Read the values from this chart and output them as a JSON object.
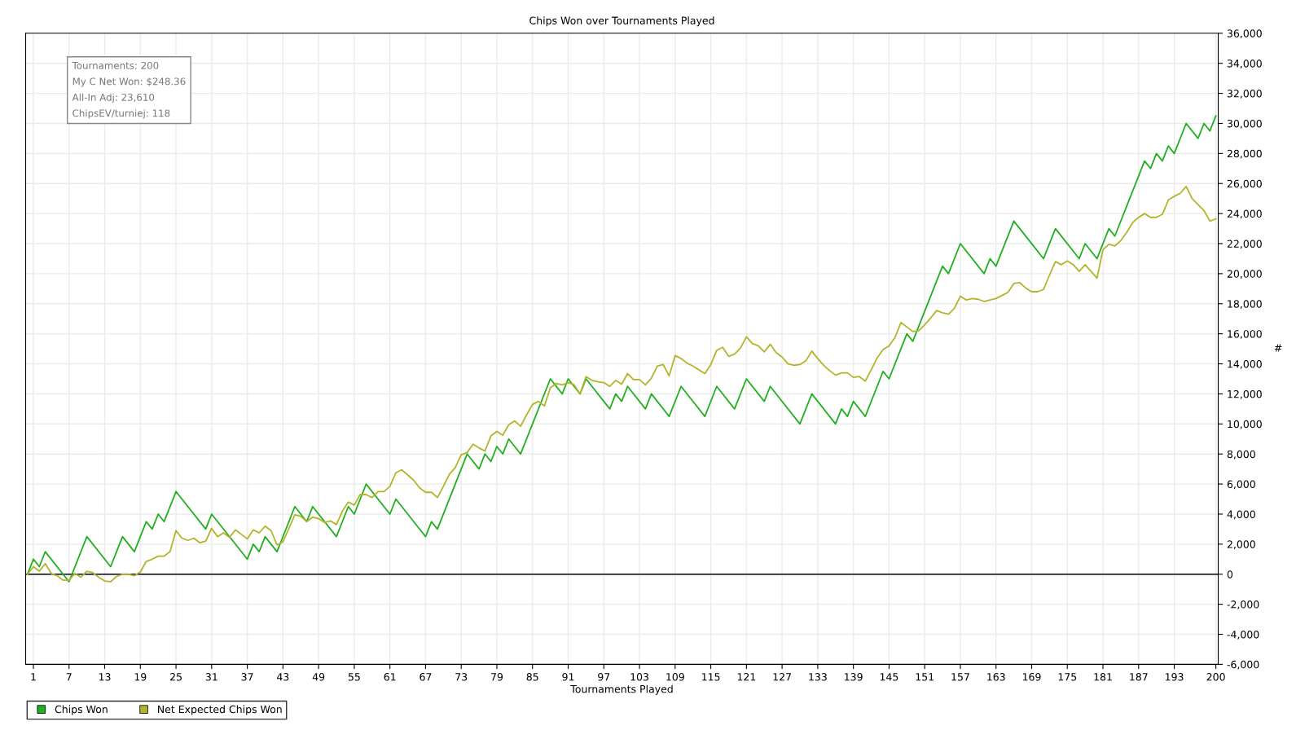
{
  "chart_data": {
    "type": "line",
    "title": "Chips Won over Tournaments Played",
    "xlabel": "Tournaments Played",
    "ylabel": "#",
    "annotations": [
      "Tournaments: 200",
      "My C Net Won: $248.36",
      "All-In Adj: 23,610",
      "ChipsEV/turniej: 118"
    ],
    "xlim": [
      -0.3,
      200.4
    ],
    "xticks": [
      1,
      7,
      13,
      19,
      25,
      31,
      37,
      43,
      49,
      55,
      61,
      67,
      73,
      79,
      85,
      91,
      97,
      103,
      109,
      115,
      121,
      127,
      133,
      139,
      145,
      151,
      157,
      163,
      169,
      175,
      181,
      187,
      193,
      200
    ],
    "ylim": [
      -6000,
      36000
    ],
    "yticks": [
      {
        "value": -6000,
        "label": "-6,000"
      },
      {
        "value": -4000,
        "label": "-4,000"
      },
      {
        "value": -2000,
        "label": "-2,000"
      },
      0,
      {
        "value": 2000,
        "label": "2,000"
      },
      {
        "value": 4000,
        "label": "4,000"
      },
      {
        "value": 6000,
        "label": "6,000"
      },
      {
        "value": 8000,
        "label": "8,000"
      },
      {
        "value": 10000,
        "label": "10,000"
      },
      {
        "value": 12000,
        "label": "12,000"
      },
      {
        "value": 14000,
        "label": "14,000"
      },
      {
        "value": 16000,
        "label": "16,000"
      },
      {
        "value": 18000,
        "label": "18,000"
      },
      {
        "value": 20000,
        "label": "20,000"
      },
      {
        "value": 22000,
        "label": "22,000"
      },
      {
        "value": 24000,
        "label": "24,000"
      },
      {
        "value": 26000,
        "label": "26,000"
      },
      {
        "value": 28000,
        "label": "28,000"
      },
      {
        "value": 30000,
        "label": "30,000"
      },
      {
        "value": 32000,
        "label": "32,000"
      },
      {
        "value": 34000,
        "label": "34,000"
      },
      {
        "value": 36000,
        "label": "36,000"
      }
    ],
    "grid": true,
    "legend": "bottom left",
    "marker": "none",
    "line_style": "solid",
    "ref_lines": [
      {
        "axis": "y",
        "value": 0,
        "label": null,
        "color": "#000000"
      }
    ],
    "series": [
      {
        "name": "Chips Won",
        "color": "#22b022",
        "x": [
          0,
          1,
          2,
          3,
          7,
          10,
          14,
          16,
          18,
          20,
          21,
          22,
          23,
          25,
          30,
          31,
          37,
          38,
          39,
          40,
          42,
          45,
          47,
          48,
          52,
          54,
          55,
          57,
          61,
          62,
          67,
          68,
          69,
          74,
          76,
          77,
          78,
          79,
          80,
          81,
          83,
          88,
          90,
          91,
          93,
          94,
          98,
          99,
          100,
          101,
          104,
          105,
          108,
          110,
          114,
          116,
          119,
          121,
          124,
          125,
          130,
          132,
          136,
          137,
          138,
          139,
          141,
          144,
          145,
          148,
          149,
          154,
          155,
          157,
          161,
          162,
          163,
          166,
          171,
          173,
          177,
          178,
          180,
          182,
          183,
          188,
          189,
          190,
          191,
          192,
          193,
          195,
          197,
          198,
          199,
          200
        ],
        "values": [
          0,
          1000,
          500,
          1500,
          -500,
          2500,
          500,
          2500,
          1500,
          3500,
          3000,
          4000,
          3500,
          5500,
          3000,
          4000,
          1000,
          2000,
          1500,
          2500,
          1500,
          4500,
          3500,
          4500,
          2500,
          4500,
          4000,
          6000,
          4000,
          5000,
          2500,
          3500,
          3000,
          8000,
          7000,
          8000,
          7500,
          8500,
          8000,
          9000,
          8000,
          13000,
          12000,
          13000,
          12000,
          13000,
          11000,
          12000,
          11500,
          12500,
          11000,
          12000,
          10500,
          12500,
          10500,
          12500,
          11000,
          13000,
          11500,
          12500,
          10000,
          12000,
          10000,
          11000,
          10500,
          11500,
          10500,
          13500,
          13000,
          16000,
          15500,
          20500,
          20000,
          22000,
          20000,
          21000,
          20500,
          23500,
          21000,
          23000,
          21000,
          22000,
          21000,
          23000,
          22500,
          27500,
          27000,
          28000,
          27500,
          28500,
          28000,
          30000,
          29000,
          30000,
          29500,
          30500
        ]
      },
      {
        "name": "Net Expected Chips Won",
        "color": "#b4b42c",
        "x": [
          0,
          1,
          2,
          3,
          4,
          5,
          6,
          7,
          8,
          9,
          10,
          11,
          12,
          13,
          14,
          15,
          16,
          17,
          18,
          19,
          20,
          21,
          22,
          23,
          24,
          25,
          26,
          27,
          28,
          29,
          30,
          31,
          32,
          33,
          34,
          35,
          36,
          37,
          38,
          39,
          40,
          41,
          42,
          43,
          44,
          45,
          46,
          47,
          48,
          49,
          50,
          51,
          52,
          53,
          54,
          55,
          56,
          57,
          58,
          59,
          60,
          61,
          62,
          63,
          64,
          65,
          66,
          67,
          68,
          69,
          70,
          71,
          72,
          73,
          74,
          75,
          76,
          77,
          78,
          79,
          80,
          81,
          82,
          83,
          84,
          85,
          86,
          87,
          88,
          89,
          90,
          91,
          92,
          93,
          94,
          95,
          96,
          97,
          98,
          99,
          100,
          101,
          102,
          103,
          104,
          105,
          106,
          107,
          108,
          109,
          110,
          111,
          112,
          113,
          114,
          115,
          116,
          117,
          118,
          119,
          120,
          121,
          122,
          123,
          124,
          125,
          126,
          127,
          128,
          129,
          130,
          131,
          132,
          133,
          134,
          135,
          136,
          137,
          138,
          139,
          140,
          141,
          142,
          143,
          144,
          145,
          146,
          147,
          148,
          149,
          150,
          151,
          152,
          153,
          154,
          155,
          156,
          157,
          158,
          159,
          160,
          161,
          162,
          163,
          164,
          165,
          166,
          167,
          168,
          169,
          170,
          171,
          172,
          173,
          174,
          175,
          176,
          177,
          178,
          179,
          180,
          181,
          182,
          183,
          184,
          185,
          186,
          187,
          188,
          189,
          190,
          191,
          192,
          193,
          194,
          195,
          196,
          197,
          198,
          199,
          200
        ],
        "values": [
          0,
          500,
          200,
          700,
          50,
          -100,
          -400,
          -400,
          50,
          -200,
          200,
          100,
          -200,
          -450,
          -500,
          -150,
          0,
          0,
          -100,
          150,
          850,
          1000,
          1200,
          1200,
          1500,
          2900,
          2400,
          2250,
          2400,
          2100,
          2200,
          3050,
          2500,
          2750,
          2450,
          2950,
          2650,
          2350,
          2950,
          2750,
          3200,
          2900,
          1950,
          2150,
          3050,
          3950,
          3850,
          3500,
          3800,
          3700,
          3450,
          3550,
          3300,
          4200,
          4800,
          4600,
          5300,
          5300,
          5100,
          5500,
          5500,
          5850,
          6750,
          6950,
          6600,
          6250,
          5750,
          5450,
          5450,
          5100,
          5850,
          6650,
          7100,
          7950,
          8100,
          8650,
          8400,
          8200,
          9200,
          9500,
          9250,
          9950,
          10200,
          9850,
          10600,
          11300,
          11500,
          11200,
          12400,
          12700,
          12600,
          12750,
          12600,
          12000,
          13150,
          12900,
          12800,
          12750,
          12500,
          12900,
          12650,
          13350,
          12950,
          12950,
          12600,
          13050,
          13850,
          13950,
          13200,
          14550,
          14350,
          14050,
          13850,
          13600,
          13350,
          13950,
          14900,
          15100,
          14500,
          14650,
          15050,
          15800,
          15350,
          15200,
          14800,
          15300,
          14750,
          14450,
          14000,
          13900,
          13950,
          14200,
          14850,
          14350,
          13900,
          13550,
          13250,
          13400,
          13400,
          13100,
          13150,
          12850,
          13600,
          14400,
          14950,
          15200,
          15750,
          16750,
          16450,
          16150,
          16200,
          16600,
          17050,
          17550,
          17400,
          17300,
          17700,
          18500,
          18250,
          18350,
          18300,
          18150,
          18250,
          18350,
          18550,
          18750,
          19350,
          19400,
          19050,
          18800,
          18800,
          18950,
          19900,
          20800,
          20600,
          20850,
          20600,
          20150,
          20600,
          20150,
          19700,
          21600,
          21950,
          21850,
          22200,
          22750,
          23400,
          23750,
          24000,
          23750,
          23750,
          23950,
          24900,
          25150,
          25350,
          25800,
          25000,
          24600,
          24200,
          23500,
          23650
        ]
      }
    ]
  }
}
